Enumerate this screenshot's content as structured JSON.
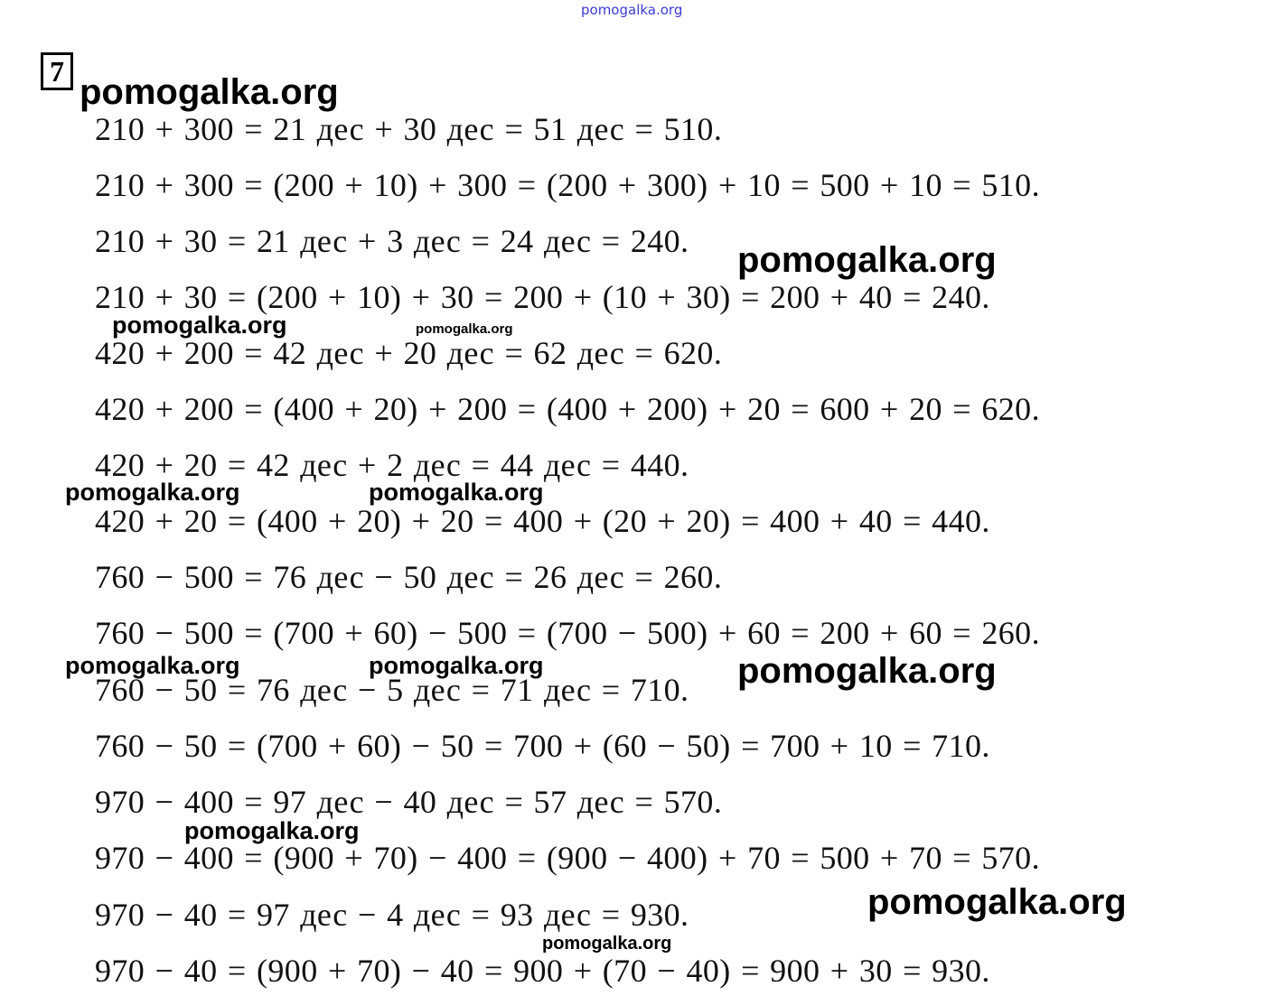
{
  "header": {
    "site_link": "pomogalka.org",
    "exercise_number": "7"
  },
  "watermark": "pomogalka.org",
  "equations": [
    "210 + 300 = 21 дес + 30 дес = 51 дес = 510.",
    "210 + 300 = (200 + 10) + 300 = (200 + 300) + 10 = 500 + 10 = 510.",
    "210 + 30 = 21 дес + 3 дес = 24 дес = 240.",
    "210 + 30 = (200 + 10) + 30 = 200 + (10 + 30) = 200 + 40 = 240.",
    "420 + 200 = 42 дес + 20 дес = 62 дес = 620.",
    "420 + 200 = (400 + 20) + 200 = (400 + 200) + 20 = 600 + 20 = 620.",
    "420 + 20 = 42 дес + 2 дес = 44 дес = 440.",
    "420 + 20 = (400 + 20) + 20 = 400 + (20 + 20) = 400 + 40 = 440.",
    "760 − 500 = 76 дес − 50 дес = 26 дес = 260.",
    "760 − 500 = (700 + 60) − 500 = (700 − 500) + 60 = 200 + 60 = 260.",
    "760 − 50 = 76 дес − 5 дес = 71 дес = 710.",
    "760 − 50 = (700 + 60) − 50 = 700 + (60 − 50) = 700 + 10 = 710.",
    "970 − 400 = 97 дес − 40 дес = 57 дес = 570.",
    "970 − 400 = (900 + 70) − 400 = (900 − 400) + 70 = 500 + 70 = 570.",
    "970 − 40 = 97 дес − 4 дес = 93 дес = 930.",
    "970 − 40 = (900 + 70) − 40 = 900 + (70 − 40) = 900 + 30 = 930."
  ]
}
